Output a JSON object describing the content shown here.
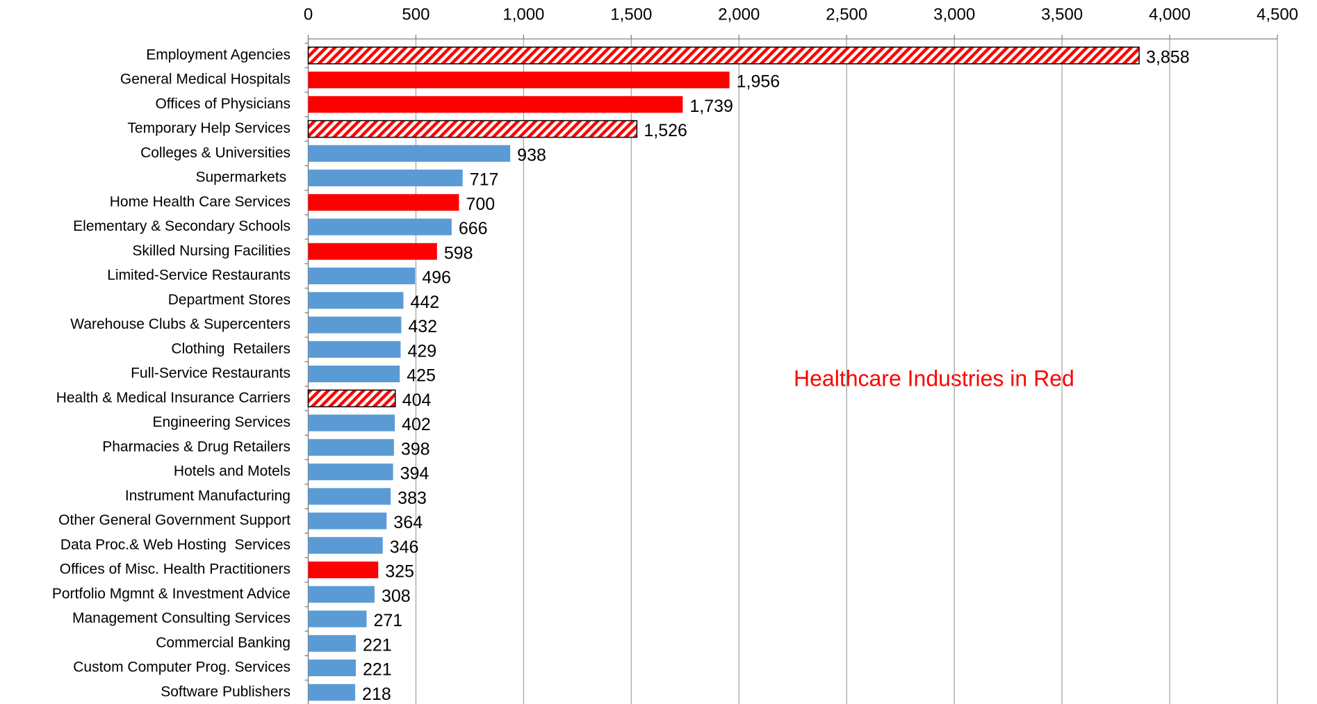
{
  "chart_data": {
    "type": "bar",
    "orientation": "horizontal",
    "annotation": "Healthcare Industries in Red",
    "categories": [
      "Employment Agencies",
      "General Medical Hospitals",
      "Offices of Physicians",
      "Temporary Help Services",
      "Colleges & Universities",
      "Supermarkets ",
      "Home Health Care Services",
      "Elementary & Secondary Schools",
      "Skilled Nursing Facilities",
      "Limited-Service Restaurants",
      "Department Stores",
      "Warehouse Clubs & Supercenters",
      "Clothing  Retailers",
      "Full-Service Restaurants",
      "Health & Medical Insurance Carriers",
      "Engineering Services",
      "Pharmacies & Drug Retailers",
      "Hotels and Motels",
      "Instrument Manufacturing",
      "Other General Government Support",
      "Data Proc.& Web Hosting  Services",
      "Offices of Misc. Health Practitioners",
      "Portfolio Mgmnt & Investment Advice",
      "Management Consulting Services",
      "Commercial Banking",
      "Custom Computer Prog. Services",
      "Software Publishers"
    ],
    "values": [
      3858,
      1956,
      1739,
      1526,
      938,
      717,
      700,
      666,
      598,
      496,
      442,
      432,
      429,
      425,
      404,
      402,
      398,
      394,
      383,
      364,
      346,
      325,
      308,
      271,
      221,
      221,
      218
    ],
    "value_labels": [
      "3,858",
      "1,956",
      "1,739",
      "1,526",
      "938",
      "717",
      "700",
      "666",
      "598",
      "496",
      "442",
      "432",
      "429",
      "425",
      "404",
      "402",
      "398",
      "394",
      "383",
      "364",
      "346",
      "325",
      "308",
      "271",
      "221",
      "221",
      "218"
    ],
    "colors": [
      "#ff0000",
      "#ff0000",
      "#ff0000",
      "#ff0000",
      "#5b9bd5",
      "#5b9bd5",
      "#ff0000",
      "#5b9bd5",
      "#ff0000",
      "#5b9bd5",
      "#5b9bd5",
      "#5b9bd5",
      "#5b9bd5",
      "#5b9bd5",
      "#ff0000",
      "#5b9bd5",
      "#5b9bd5",
      "#5b9bd5",
      "#5b9bd5",
      "#5b9bd5",
      "#5b9bd5",
      "#ff0000",
      "#5b9bd5",
      "#5b9bd5",
      "#5b9bd5",
      "#5b9bd5",
      "#5b9bd5"
    ],
    "patterns": [
      "hatch",
      "solid",
      "solid",
      "hatch",
      "solid",
      "solid",
      "solid",
      "solid",
      "solid",
      "solid",
      "solid",
      "solid",
      "solid",
      "solid",
      "hatch",
      "solid",
      "solid",
      "solid",
      "solid",
      "solid",
      "solid",
      "solid",
      "solid",
      "solid",
      "solid",
      "solid",
      "solid"
    ],
    "xlim": [
      0,
      4500
    ],
    "xticks": [
      0,
      500,
      {
        "value": 1000,
        "label": "1,000"
      },
      {
        "value": 1500,
        "label": "1,500"
      },
      {
        "value": 2000,
        "label": "2,000"
      },
      {
        "value": 2500,
        "label": "2,500"
      },
      {
        "value": 3000,
        "label": "3,000"
      },
      {
        "value": 3500,
        "label": "3,500"
      },
      {
        "value": 4000,
        "label": "4,000"
      },
      {
        "value": 4500,
        "label": "4,500"
      }
    ],
    "grid": true
  }
}
